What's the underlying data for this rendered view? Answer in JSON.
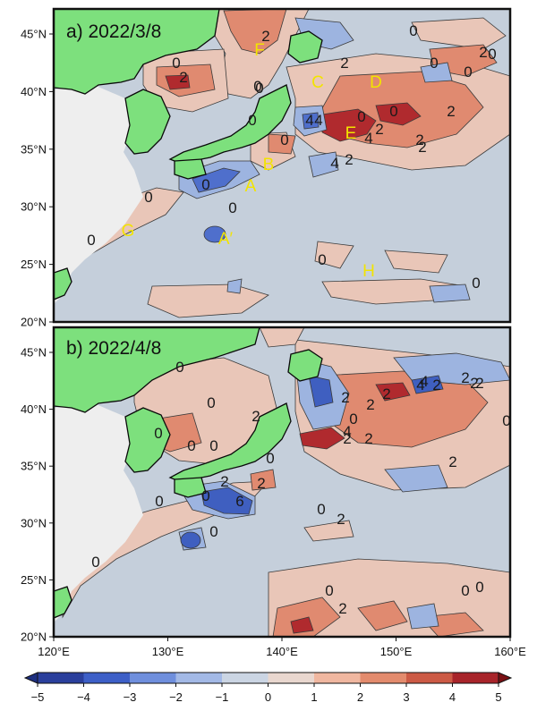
{
  "panels": [
    {
      "id": "a",
      "title": "a) 2022/3/8",
      "lat_ticks": [
        "45°N",
        "40°N",
        "35°N",
        "30°N",
        "25°N",
        "20°N"
      ],
      "region_labels": [
        "F",
        "C",
        "D",
        "E",
        "B",
        "A",
        "A′",
        "G",
        "H"
      ],
      "contour_labels": [
        "0",
        "2",
        "0",
        "2",
        "0",
        "2",
        "0",
        "0",
        "2",
        "0",
        "2",
        "0",
        "4",
        "4",
        "2",
        "4",
        "0",
        "2",
        "0",
        "0",
        "4",
        "2",
        "0",
        "0",
        "0",
        "2",
        "0",
        "0",
        "0",
        "0"
      ]
    },
    {
      "id": "b",
      "title": "b) 2022/4/8",
      "lat_ticks": [
        "45°N",
        "40°N",
        "35°N",
        "30°N",
        "25°N",
        "20°N"
      ],
      "contour_labels": [
        "0",
        "2",
        "2",
        "0",
        "0",
        "0",
        "2",
        "2",
        "2",
        "4",
        "2",
        "2",
        "0",
        "2",
        "0",
        "2",
        "0",
        "0",
        "2",
        "4",
        "2",
        "0",
        "2",
        "0",
        "0",
        "2",
        "4",
        "6",
        "0",
        "0",
        "2",
        "0",
        "0",
        "2",
        "0"
      ]
    }
  ],
  "lon_ticks": [
    "120°E",
    "130°E",
    "140°E",
    "150°E",
    "160°E"
  ],
  "colorbar": {
    "ticks": [
      "−5",
      "−4",
      "−3",
      "−2",
      "−1",
      "0",
      "1",
      "2",
      "3",
      "4",
      "5"
    ],
    "values": [
      -5,
      -4,
      -3,
      -2,
      -1,
      0,
      1,
      2,
      3,
      4,
      5
    ],
    "colors": [
      "#2a3f9c",
      "#3d5fc7",
      "#6f8fdd",
      "#a3b9e6",
      "#cbd5e3",
      "#e9d7cf",
      "#f0b7a0",
      "#e38b6d",
      "#cc5a45",
      "#a8242a"
    ]
  },
  "colors": {
    "land": "#7de07d",
    "china_grey": "#eeeeee",
    "ocean": "#c5cfdb",
    "label_yellow": "#f2e400"
  }
}
